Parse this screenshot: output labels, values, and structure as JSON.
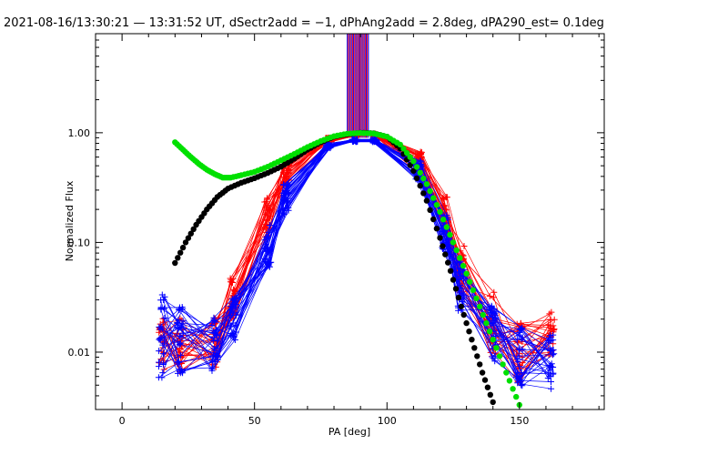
{
  "chart_data": {
    "type": "line",
    "title": "2021-08-16/13:30:21 — 13:31:52 UT, dSectr2add = −1, dPhAng2add = 2.8deg, dPA290_est=  0.1deg",
    "xlabel": "PA [deg]",
    "ylabel": "Normalized Flux",
    "xlim": [
      -10,
      182
    ],
    "ylim": [
      0.003,
      8
    ],
    "y_scale": "log",
    "grid": false,
    "x_ticks": [
      0,
      50,
      100,
      150
    ],
    "x_tick_labels": [
      "0",
      "50",
      "100",
      "150"
    ],
    "y_ticks": [
      0.01,
      0.1,
      1.0
    ],
    "y_tick_labels": [
      "0.01",
      "0.10",
      "1.00"
    ],
    "colors": {
      "red": "#ff0000",
      "blue": "#0000ff",
      "green": "#00e000",
      "black": "#000000"
    },
    "bundles": {
      "pa": [
        15,
        22,
        35,
        42,
        55,
        62,
        78,
        88,
        95,
        112,
        122,
        128,
        140,
        150,
        162
      ],
      "red": {
        "name": "red",
        "color": "#ff0000",
        "baseline": [
          0.011,
          0.012,
          0.012,
          0.03,
          0.17,
          0.45,
          0.86,
          0.95,
          0.96,
          0.55,
          0.17,
          0.055,
          0.018,
          0.01,
          0.015
        ],
        "spread": [
          1.9,
          1.9,
          1.7,
          1.6,
          1.5,
          1.35,
          1.05,
          1.02,
          1.02,
          1.25,
          1.55,
          1.7,
          2.0,
          1.9,
          1.6
        ],
        "count": 26
      },
      "blue": {
        "name": "blue",
        "color": "#0000ff",
        "baseline": [
          0.014,
          0.013,
          0.012,
          0.02,
          0.09,
          0.25,
          0.76,
          0.85,
          0.85,
          0.45,
          0.12,
          0.04,
          0.015,
          0.009,
          0.008
        ],
        "spread": [
          2.4,
          2.1,
          1.8,
          1.6,
          1.6,
          1.4,
          1.05,
          1.03,
          1.03,
          1.25,
          1.5,
          1.7,
          1.9,
          1.9,
          1.8
        ],
        "count": 30
      }
    },
    "series": [
      {
        "color": "#000000",
        "marker": "filled-circle",
        "x": [
          20,
          24,
          28,
          32,
          36,
          40,
          45,
          50,
          55,
          60,
          65,
          70,
          75,
          80,
          85,
          90,
          95,
          100,
          105,
          110,
          115,
          120,
          124,
          128,
          132,
          136,
          140
        ],
        "y": [
          0.065,
          0.1,
          0.145,
          0.2,
          0.26,
          0.31,
          0.35,
          0.385,
          0.43,
          0.49,
          0.58,
          0.7,
          0.82,
          0.92,
          0.97,
          1.0,
          0.99,
          0.92,
          0.72,
          0.45,
          0.24,
          0.11,
          0.055,
          0.026,
          0.013,
          0.0065,
          0.0035
        ]
      },
      {
        "color": "#00e000",
        "marker": "filled-circle",
        "x": [
          20,
          23,
          26,
          29,
          32,
          35,
          38,
          41,
          45,
          50,
          55,
          60,
          65,
          70,
          75,
          80,
          85,
          90,
          95,
          100,
          105,
          110,
          115,
          120,
          125,
          130,
          135,
          140,
          145,
          150
        ],
        "y": [
          0.82,
          0.7,
          0.6,
          0.52,
          0.46,
          0.42,
          0.39,
          0.39,
          0.41,
          0.44,
          0.49,
          0.56,
          0.64,
          0.74,
          0.84,
          0.93,
          0.98,
          0.995,
          0.985,
          0.92,
          0.78,
          0.55,
          0.34,
          0.19,
          0.1,
          0.052,
          0.026,
          0.013,
          0.0065,
          0.0033
        ]
      }
    ],
    "vertical_lines": {
      "color_cycle": [
        "#0000ff",
        "#ff0000"
      ],
      "x_from": 85,
      "x_to": 93,
      "step": 0.4,
      "y_from": 0.9,
      "y_to": 8
    }
  }
}
